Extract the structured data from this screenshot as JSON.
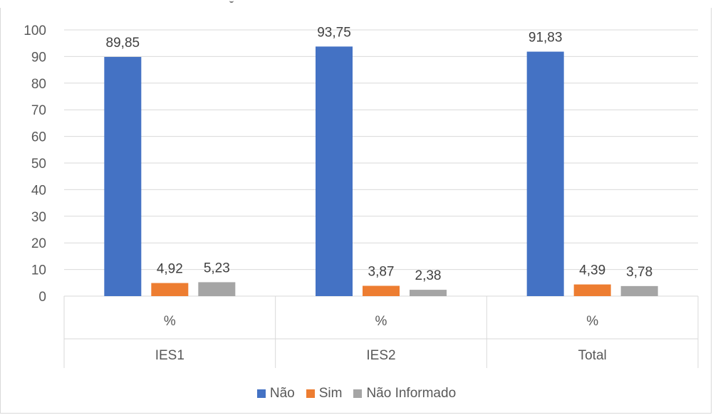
{
  "chart_data": {
    "type": "bar",
    "groups": [
      "IES1",
      "IES2",
      "Total"
    ],
    "subcategory": "%",
    "series": [
      {
        "name": "Não",
        "color": "#4472c4",
        "values": [
          89.85,
          93.75,
          91.83
        ],
        "labels": [
          "89,85",
          "93,75",
          "91,83"
        ]
      },
      {
        "name": "Sim",
        "color": "#ed7d31",
        "values": [
          4.92,
          3.87,
          4.39
        ],
        "labels": [
          "4,92",
          "3,87",
          "4,39"
        ]
      },
      {
        "name": "Não Informado",
        "color": "#a5a5a5",
        "values": [
          5.23,
          2.38,
          3.78
        ],
        "labels": [
          "5,23",
          "2,38",
          "3,78"
        ]
      }
    ],
    "yticks": [
      "0",
      "10",
      "20",
      "30",
      "40",
      "50",
      "60",
      "70",
      "80",
      "90",
      "100"
    ],
    "ylim": [
      0,
      100
    ],
    "grid": true,
    "legend_position": "bottom"
  }
}
